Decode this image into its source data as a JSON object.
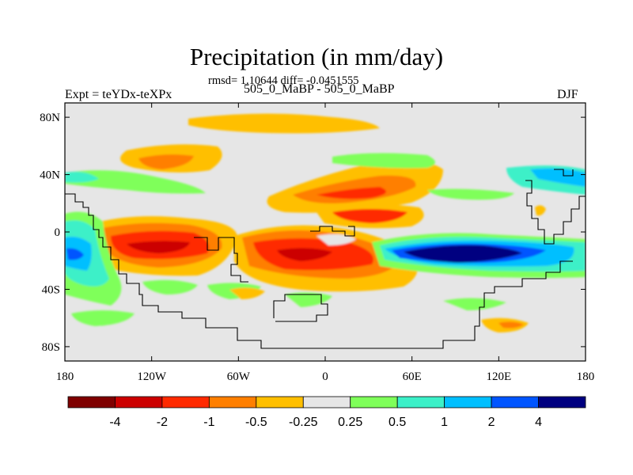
{
  "chart_data": {
    "type": "heatmap",
    "title": "Precipitation (in mm/day)",
    "stats_text": "rmsd= 1.10644 diff= -0.0451555",
    "left_label": "Expt = teYDx-teXPx",
    "center_label": "505_0_MaBP - 505_0_MaBP",
    "right_label": "DJF",
    "x_ticks": [
      {
        "value": -180,
        "label": "180"
      },
      {
        "value": -120,
        "label": "120W"
      },
      {
        "value": -60,
        "label": "60W"
      },
      {
        "value": 0,
        "label": "0"
      },
      {
        "value": 60,
        "label": "60E"
      },
      {
        "value": 120,
        "label": "120E"
      },
      {
        "value": 180,
        "label": "180"
      }
    ],
    "y_ticks": [
      {
        "value": 80,
        "label": "80N"
      },
      {
        "value": 40,
        "label": "40N"
      },
      {
        "value": 0,
        "label": "0"
      },
      {
        "value": -40,
        "label": "40S"
      },
      {
        "value": -80,
        "label": "80S"
      }
    ],
    "xlim": [
      -180,
      180
    ],
    "ylim": [
      -90,
      90
    ],
    "colorbar": {
      "levels": [
        "-4",
        "-2",
        "-1",
        "-0.5",
        "-0.25",
        "0.25",
        "0.5",
        "1",
        "2",
        "4"
      ],
      "colors": [
        "#7f0000",
        "#cc0000",
        "#ff2a00",
        "#ff7f00",
        "#ffbf00",
        "#e6e6e6",
        "#7fff5a",
        "#3cf0c8",
        "#00bfff",
        "#0055ff",
        "#000080"
      ]
    },
    "background_color": "#e6e6e6"
  }
}
